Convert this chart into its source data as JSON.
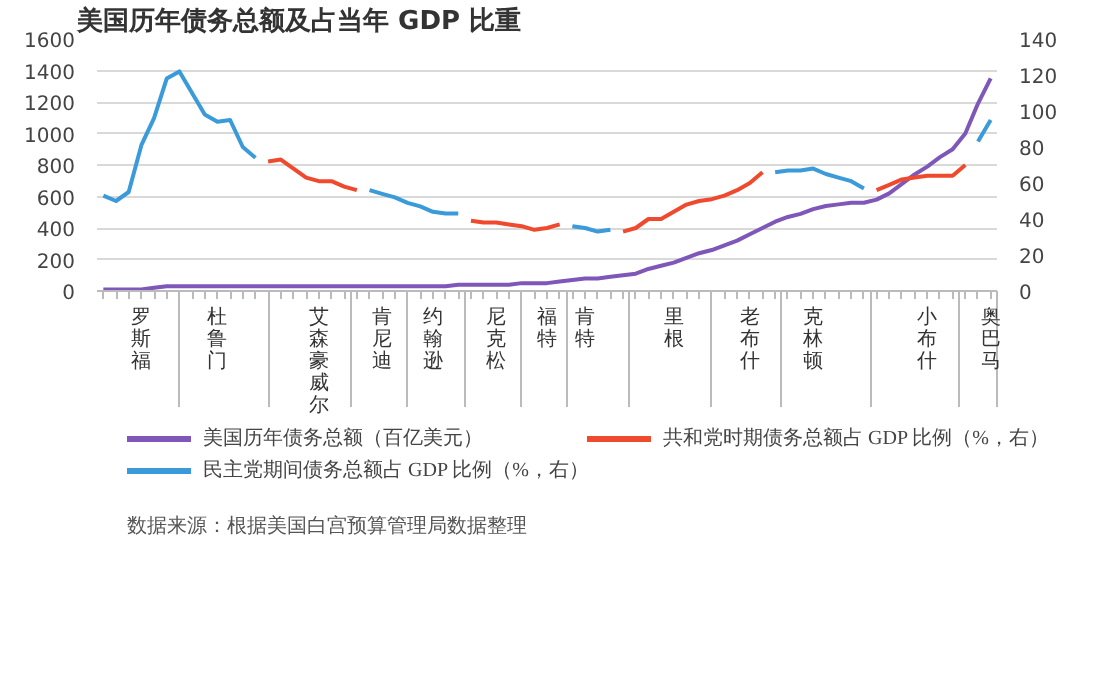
{
  "chart_data": {
    "type": "line",
    "title": "美国历年债务总额及占当年 GDP 比重",
    "categories": [
      null,
      null,
      null,
      "罗斯福",
      null,
      null,
      null,
      null,
      null,
      "杜鲁门",
      null,
      null,
      null,
      null,
      null,
      null,
      null,
      "艾森豪威尔",
      null,
      null,
      null,
      null,
      "肯尼迪",
      null,
      null,
      null,
      "约翰逊",
      null,
      null,
      null,
      null,
      "尼克松",
      null,
      null,
      null,
      "福特",
      null,
      null,
      "肯特",
      null,
      null,
      null,
      null,
      null,
      null,
      "里根",
      null,
      null,
      null,
      null,
      null,
      "老布什",
      null,
      null,
      null,
      null,
      "克林顿",
      null,
      null,
      null,
      null,
      null,
      null,
      null,
      null,
      "小布什",
      null,
      null,
      null,
      null,
      "奥巴马"
    ],
    "ylim": [
      0,
      1600
    ],
    "yticks": [
      0,
      200,
      400,
      600,
      800,
      1000,
      1200,
      1400,
      1600
    ],
    "y2lim": [
      0,
      140
    ],
    "y2ticks": [
      0,
      20,
      40,
      60,
      80,
      100,
      120,
      140
    ],
    "grid": "y",
    "legend": "bottom",
    "series": [
      {
        "name": "美国历年债务总额（百亿美元）",
        "color": "#7e57b8",
        "values": [
          10,
          10,
          10,
          10,
          20,
          30,
          30,
          30,
          30,
          30,
          30,
          30,
          30,
          30,
          30,
          30,
          30,
          30,
          30,
          30,
          30,
          30,
          30,
          30,
          30,
          30,
          30,
          30,
          40,
          40,
          40,
          40,
          40,
          50,
          50,
          50,
          60,
          70,
          80,
          80,
          90,
          100,
          110,
          140,
          160,
          180,
          210,
          240,
          260,
          290,
          320,
          360,
          400,
          440,
          470,
          490,
          520,
          540,
          550,
          560,
          560,
          580,
          620,
          680,
          740,
          790,
          850,
          900,
          1000,
          1190,
          1350
        ]
      },
      {
        "name": "共和党时期债务总额占 GDP 比例（%，右）",
        "color": "#f04a2e",
        "axis": "y2",
        "values": [
          null,
          null,
          null,
          null,
          null,
          null,
          null,
          null,
          null,
          null,
          null,
          null,
          null,
          72,
          73,
          68,
          63,
          61,
          61,
          58,
          56,
          null,
          null,
          null,
          null,
          null,
          null,
          null,
          null,
          39,
          38,
          38,
          37,
          36,
          34,
          35,
          37,
          null,
          null,
          null,
          null,
          33,
          35,
          40,
          40,
          44,
          48,
          50,
          51,
          53,
          56,
          60,
          66,
          null,
          null,
          null,
          null,
          null,
          null,
          null,
          null,
          56,
          59,
          62,
          63,
          64,
          64,
          64,
          70,
          null,
          null
        ]
      },
      {
        "name": "民主党期间债务总额占 GDP 比例（%，右）",
        "color": "#3b9ad9",
        "axis": "y2",
        "values": [
          53,
          50,
          55,
          81,
          96,
          118,
          122,
          110,
          98,
          94,
          95,
          80,
          74,
          null,
          null,
          null,
          null,
          null,
          null,
          null,
          null,
          56,
          54,
          52,
          49,
          47,
          44,
          43,
          43,
          null,
          null,
          null,
          null,
          null,
          null,
          null,
          null,
          36,
          35,
          33,
          34,
          null,
          null,
          null,
          null,
          null,
          null,
          null,
          null,
          null,
          null,
          null,
          null,
          66,
          67,
          67,
          68,
          65,
          63,
          61,
          57,
          null,
          null,
          null,
          null,
          null,
          null,
          null,
          null,
          83,
          95
        ]
      }
    ],
    "annotations": [
      "数据来源：根据美国白宫预算管理局数据整理"
    ]
  }
}
